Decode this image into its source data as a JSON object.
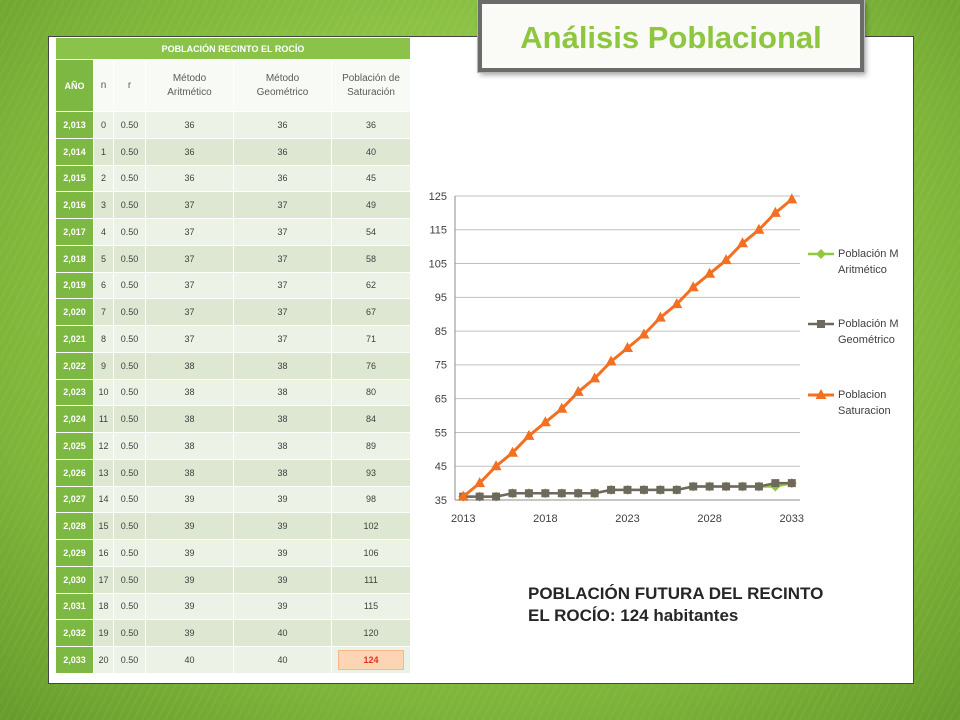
{
  "slide": {
    "title": "Análisis Poblacional",
    "colors": {
      "background_green": "#8cc543",
      "accent_green": "#7db843",
      "title_text": "#8dc63f",
      "title_frame": "#6b6b6b",
      "highlight_fill": "#fcd5b4",
      "highlight_text": "#e2321f"
    }
  },
  "table": {
    "caption": "POBLACIÓN RECINTO EL ROCÍO",
    "headers": [
      "AÑO",
      "n",
      "r",
      "Método Aritmético",
      "Método Geométrico",
      "Población de Saturación"
    ],
    "rows": [
      [
        "2,013",
        "0",
        "0.50",
        "36",
        "36",
        "36"
      ],
      [
        "2,014",
        "1",
        "0.50",
        "36",
        "36",
        "40"
      ],
      [
        "2,015",
        "2",
        "0.50",
        "36",
        "36",
        "45"
      ],
      [
        "2,016",
        "3",
        "0.50",
        "37",
        "37",
        "49"
      ],
      [
        "2,017",
        "4",
        "0.50",
        "37",
        "37",
        "54"
      ],
      [
        "2,018",
        "5",
        "0.50",
        "37",
        "37",
        "58"
      ],
      [
        "2,019",
        "6",
        "0.50",
        "37",
        "37",
        "62"
      ],
      [
        "2,020",
        "7",
        "0.50",
        "37",
        "37",
        "67"
      ],
      [
        "2,021",
        "8",
        "0.50",
        "37",
        "37",
        "71"
      ],
      [
        "2,022",
        "9",
        "0.50",
        "38",
        "38",
        "76"
      ],
      [
        "2,023",
        "10",
        "0.50",
        "38",
        "38",
        "80"
      ],
      [
        "2,024",
        "11",
        "0.50",
        "38",
        "38",
        "84"
      ],
      [
        "2,025",
        "12",
        "0.50",
        "38",
        "38",
        "89"
      ],
      [
        "2,026",
        "13",
        "0.50",
        "38",
        "38",
        "93"
      ],
      [
        "2,027",
        "14",
        "0.50",
        "39",
        "39",
        "98"
      ],
      [
        "2,028",
        "15",
        "0.50",
        "39",
        "39",
        "102"
      ],
      [
        "2,029",
        "16",
        "0.50",
        "39",
        "39",
        "106"
      ],
      [
        "2,030",
        "17",
        "0.50",
        "39",
        "39",
        "111"
      ],
      [
        "2,031",
        "18",
        "0.50",
        "39",
        "39",
        "115"
      ],
      [
        "2,032",
        "19",
        "0.50",
        "39",
        "40",
        "120"
      ],
      [
        "2,033",
        "20",
        "0.50",
        "40",
        "40",
        "124"
      ]
    ]
  },
  "chart_data": {
    "type": "line",
    "categories": [
      2013,
      2014,
      2015,
      2016,
      2017,
      2018,
      2019,
      2020,
      2021,
      2022,
      2023,
      2024,
      2025,
      2026,
      2027,
      2028,
      2029,
      2030,
      2031,
      2032,
      2033
    ],
    "ylim": [
      35,
      125
    ],
    "yticks": [
      35,
      45,
      55,
      65,
      75,
      85,
      95,
      105,
      115,
      125
    ],
    "grid": true,
    "legend_position": "right",
    "series": [
      {
        "name": "Población M Aritmético",
        "color": "#92c83e",
        "marker": "diamond",
        "values": [
          36,
          36,
          36,
          37,
          37,
          37,
          37,
          37,
          37,
          38,
          38,
          38,
          38,
          38,
          39,
          39,
          39,
          39,
          39,
          39,
          40
        ]
      },
      {
        "name": "Población M Geométrico",
        "color": "#6e695d",
        "marker": "square",
        "values": [
          36,
          36,
          36,
          37,
          37,
          37,
          37,
          37,
          37,
          38,
          38,
          38,
          38,
          38,
          39,
          39,
          39,
          39,
          39,
          40,
          40
        ]
      },
      {
        "name": "Poblacion Saturacion",
        "color": "#f36f21",
        "marker": "triangle",
        "values": [
          36,
          40,
          45,
          49,
          54,
          58,
          62,
          67,
          71,
          76,
          80,
          84,
          89,
          93,
          98,
          102,
          106,
          111,
          115,
          120,
          124
        ]
      }
    ]
  },
  "conclusion": {
    "line1": "POBLACIÓN FUTURA DEL RECINTO",
    "line2": "EL ROCÍO: 124 habitantes"
  }
}
